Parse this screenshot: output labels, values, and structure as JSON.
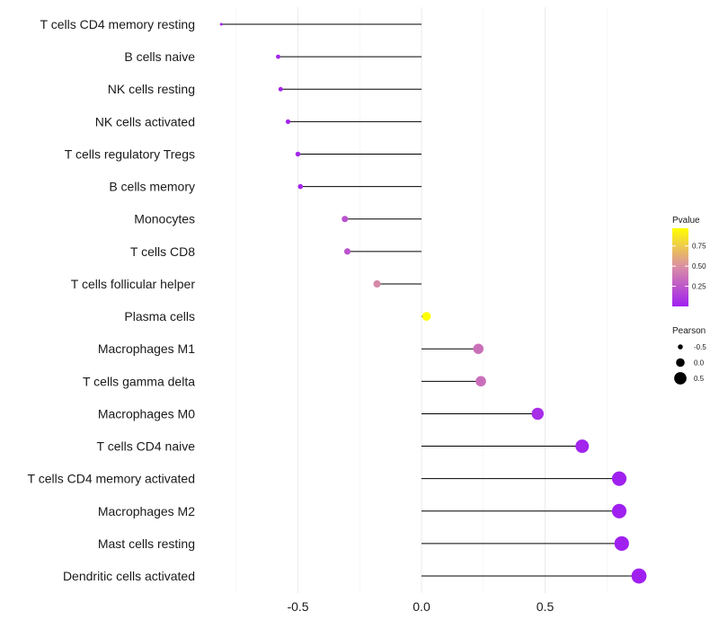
{
  "chart_data": {
    "type": "lollipop",
    "title": "",
    "xlabel": "",
    "ylabel": "",
    "xlim": [
      -0.85,
      0.87
    ],
    "xticks": [
      -0.5,
      0.0,
      0.5
    ],
    "xtick_labels": [
      "-0.5",
      "0.0",
      "0.5"
    ],
    "grid": true,
    "categories": [
      "T cells CD4 memory resting",
      "B cells naive",
      "NK cells resting",
      "NK cells activated",
      "T cells regulatory  Tregs ",
      "B cells memory",
      "Monocytes",
      "T cells CD8",
      "T cells follicular helper",
      "Plasma cells",
      "Macrophages M1",
      "T cells gamma delta",
      "Macrophages M0",
      "T cells CD4 naive",
      "T cells CD4 memory activated",
      "Macrophages M2",
      "Mast cells resting",
      "Dendritic cells activated"
    ],
    "pearson": [
      -0.81,
      -0.58,
      -0.57,
      -0.54,
      -0.5,
      -0.49,
      -0.31,
      -0.3,
      -0.18,
      0.02,
      0.23,
      0.24,
      0.47,
      0.65,
      0.8,
      0.8,
      0.81,
      0.88
    ],
    "pvalue": [
      0.0,
      0.02,
      0.02,
      0.02,
      0.03,
      0.03,
      0.22,
      0.23,
      0.47,
      0.97,
      0.36,
      0.35,
      0.06,
      0.02,
      0.0,
      0.0,
      0.0,
      0.0
    ],
    "legend": {
      "position": "right",
      "color_title": "Pvalue",
      "color_ticks": [
        "0.75",
        "0.50",
        "0.25"
      ],
      "color_tick_values": [
        0.75,
        0.5,
        0.25
      ],
      "color_range": [
        0.0,
        0.97
      ],
      "color_low": "#a020f0",
      "color_mid": "#d98ca6",
      "color_high": "#ffff00",
      "size_title": "Pearson",
      "size_entries": [
        "-0.5",
        "0.0",
        "0.5"
      ],
      "size_values": [
        -0.5,
        0.0,
        0.5
      ]
    }
  }
}
